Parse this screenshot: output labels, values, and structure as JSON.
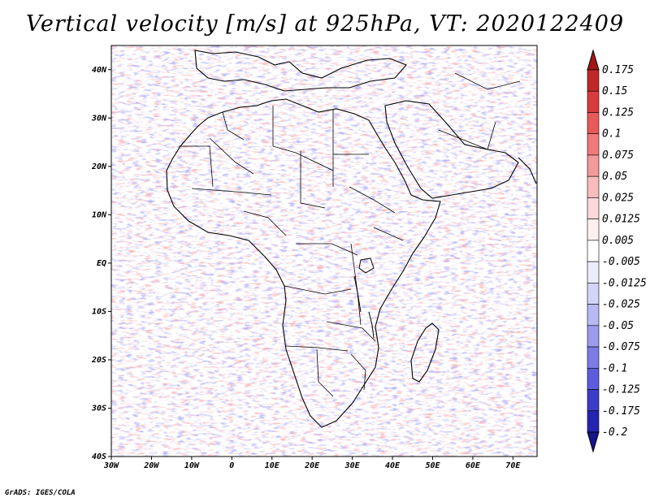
{
  "title": "Vertical velocity [m/s] at 925hPa, VT: 2020122409",
  "footer": "GrADS: IGES/COLA",
  "map": {
    "lon_range": [
      -30,
      76
    ],
    "lat_range": [
      -40,
      45
    ],
    "lon_ticks": [
      "30W",
      "20W",
      "10W",
      "0",
      "10E",
      "20E",
      "30E",
      "40E",
      "50E",
      "60E",
      "70E"
    ],
    "lat_ticks": [
      "40N",
      "30N",
      "20N",
      "10N",
      "EQ",
      "10S",
      "20S",
      "30S",
      "40S"
    ],
    "field": "vertical velocity",
    "level": "925hPa",
    "valid_time": "2020122409"
  },
  "colorbar": {
    "labels": [
      "0.175",
      "0.15",
      "0.125",
      "0.1",
      "0.075",
      "0.05",
      "0.025",
      "0.0125",
      "0.005",
      "-0.005",
      "-0.0125",
      "-0.025",
      "-0.05",
      "-0.075",
      "-0.1",
      "-0.125",
      "-0.175",
      "-0.2"
    ],
    "colors": [
      "#a01818",
      "#c02828",
      "#d83c3c",
      "#e85a5a",
      "#f07a7a",
      "#f49a9a",
      "#f8bcbc",
      "#fcd8d8",
      "#fff0f0",
      "#ffffff",
      "#ececfc",
      "#d4d4f8",
      "#b8b8f2",
      "#9c9cec",
      "#7c7ce4",
      "#5c5cdc",
      "#3c3cc8",
      "#2424b0",
      "#14148c"
    ]
  }
}
